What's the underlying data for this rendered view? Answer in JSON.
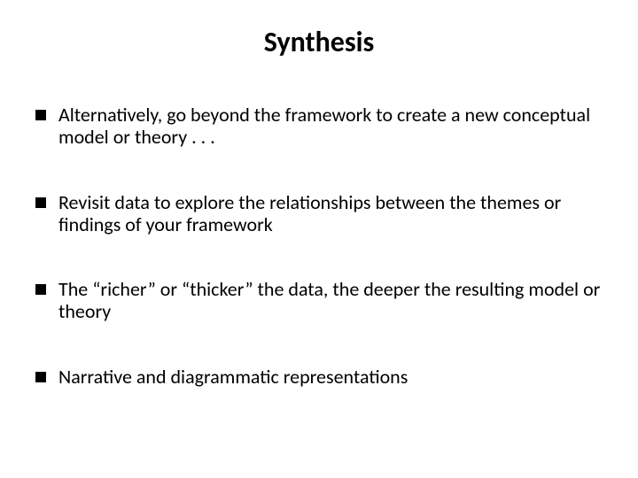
{
  "slide": {
    "title": "Synthesis",
    "title_fontsize": 32,
    "title_fontweight": "bold",
    "title_color": "#000000",
    "body_fontsize": 22,
    "body_color": "#000000",
    "background_color": "#ffffff",
    "bullet_marker_color": "#000000",
    "bullets": [
      {
        "text": "Alternatively, go beyond the framework to create a new conceptual model or theory . . ."
      },
      {
        "text": "Revisit data to explore the relationships between the themes or findings of your framework"
      },
      {
        "text": "The “richer” or “thicker” the data, the deeper the resulting model or theory"
      },
      {
        "text": "Narrative and diagrammatic representations"
      }
    ]
  }
}
